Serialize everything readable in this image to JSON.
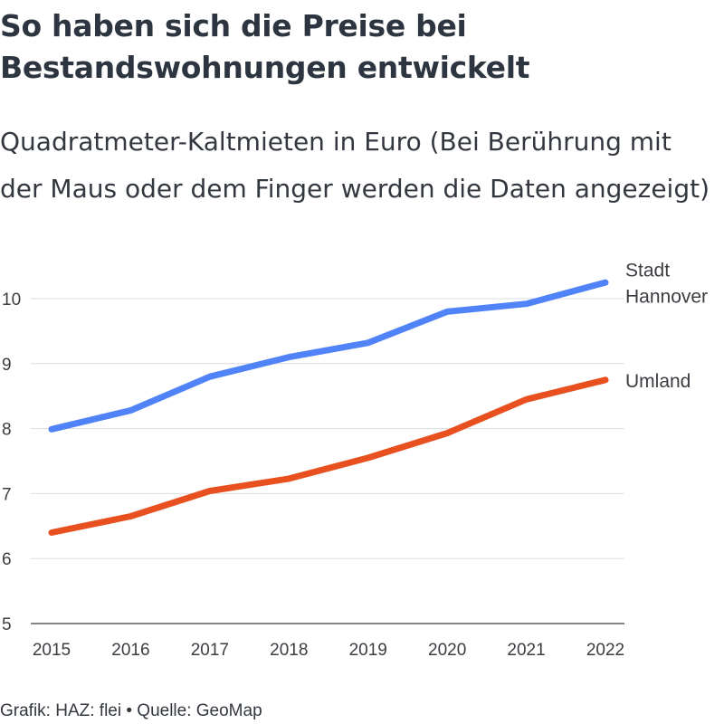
{
  "header": {
    "title": "So haben sich die Preise bei Bestandswohnungen entwickelt",
    "subtitle": "Quadratmeter-Kaltmieten in Euro (Bei Berührung mit der Maus oder dem Finger werden die Daten angezeigt)"
  },
  "footer": {
    "text": "Grafik: HAZ: flei • Quelle: GeoMap"
  },
  "chart_data": {
    "type": "line",
    "x": [
      "2015",
      "2016",
      "2017",
      "2018",
      "2019",
      "2020",
      "2021",
      "2022"
    ],
    "ylim": [
      5,
      10
    ],
    "y_ticks": [
      "5",
      "6",
      "7",
      "8",
      "9",
      "10"
    ],
    "grid": true,
    "series": [
      {
        "name": "Stadt Hannover",
        "label_lines": [
          "Stadt",
          "Hannover"
        ],
        "color": "#5082f8",
        "values": [
          7.99,
          8.28,
          8.8,
          9.1,
          9.32,
          9.8,
          9.92,
          10.25
        ]
      },
      {
        "name": "Umland",
        "label_lines": [
          "Umland"
        ],
        "color": "#e8501f",
        "values": [
          6.4,
          6.65,
          7.04,
          7.23,
          7.55,
          7.93,
          8.45,
          8.75
        ]
      }
    ]
  }
}
